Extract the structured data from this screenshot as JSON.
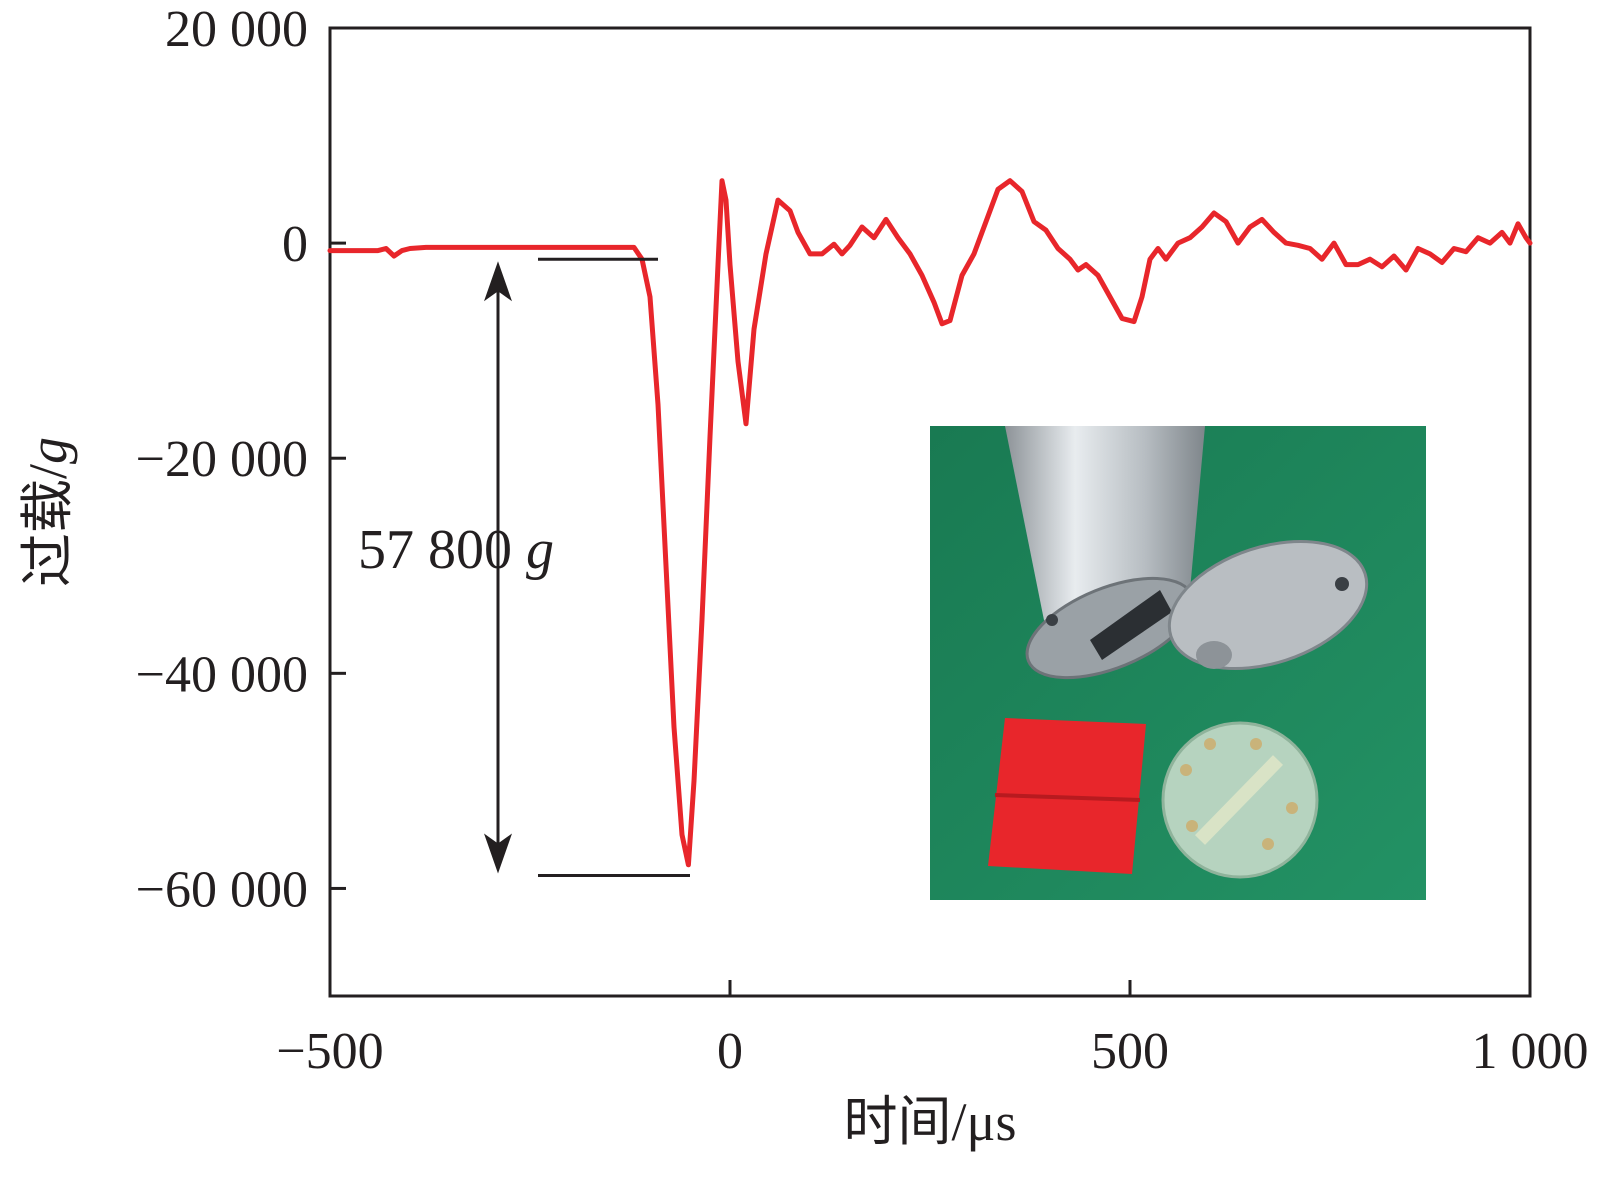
{
  "chart_data": {
    "type": "line",
    "xlabel": "时间/μs",
    "ylabel_text": "过载/",
    "ylabel_unit": "g",
    "xlim": [
      -500,
      1000
    ],
    "ylim": [
      -70000,
      20000
    ],
    "x_ticks": [
      {
        "value": -500,
        "label": "−500"
      },
      {
        "value": 0,
        "label": "0"
      },
      {
        "value": 500,
        "label": "500"
      },
      {
        "value": 1000,
        "label": "1 000"
      }
    ],
    "y_ticks": [
      {
        "value": 20000,
        "label": "20 000"
      },
      {
        "value": 0,
        "label": "0"
      },
      {
        "value": -20000,
        "label": "−20 000"
      },
      {
        "value": -40000,
        "label": "−40 000"
      },
      {
        "value": -60000,
        "label": "−60 000"
      }
    ],
    "series": [
      {
        "color": "#e8262b",
        "points": [
          [
            -500,
            -700
          ],
          [
            -440,
            -700
          ],
          [
            -430,
            -500
          ],
          [
            -420,
            -1200
          ],
          [
            -410,
            -700
          ],
          [
            -400,
            -500
          ],
          [
            -380,
            -400
          ],
          [
            -300,
            -400
          ],
          [
            -200,
            -400
          ],
          [
            -150,
            -400
          ],
          [
            -120,
            -400
          ],
          [
            -110,
            -1500
          ],
          [
            -100,
            -5000
          ],
          [
            -90,
            -15000
          ],
          [
            -80,
            -30000
          ],
          [
            -70,
            -45000
          ],
          [
            -60,
            -55000
          ],
          [
            -52,
            -57800
          ],
          [
            -45,
            -50000
          ],
          [
            -35,
            -35000
          ],
          [
            -25,
            -18000
          ],
          [
            -15,
            -2000
          ],
          [
            -10,
            5800
          ],
          [
            -5,
            4000
          ],
          [
            0,
            -2000
          ],
          [
            10,
            -11000
          ],
          [
            20,
            -16800
          ],
          [
            30,
            -8000
          ],
          [
            45,
            -1000
          ],
          [
            60,
            4000
          ],
          [
            75,
            3000
          ],
          [
            85,
            1000
          ],
          [
            100,
            -1000
          ],
          [
            115,
            -1000
          ],
          [
            130,
            -100
          ],
          [
            140,
            -1000
          ],
          [
            150,
            -200
          ],
          [
            165,
            1500
          ],
          [
            180,
            500
          ],
          [
            195,
            2200
          ],
          [
            210,
            500
          ],
          [
            225,
            -1000
          ],
          [
            240,
            -3000
          ],
          [
            255,
            -5500
          ],
          [
            265,
            -7500
          ],
          [
            275,
            -7200
          ],
          [
            290,
            -3000
          ],
          [
            305,
            -1000
          ],
          [
            320,
            2000
          ],
          [
            335,
            5000
          ],
          [
            350,
            5800
          ],
          [
            365,
            4800
          ],
          [
            380,
            2000
          ],
          [
            395,
            1200
          ],
          [
            410,
            -500
          ],
          [
            425,
            -1500
          ],
          [
            435,
            -2500
          ],
          [
            445,
            -2000
          ],
          [
            460,
            -3000
          ],
          [
            475,
            -5000
          ],
          [
            490,
            -7000
          ],
          [
            505,
            -7300
          ],
          [
            515,
            -5000
          ],
          [
            525,
            -1500
          ],
          [
            535,
            -500
          ],
          [
            545,
            -1500
          ],
          [
            560,
            0
          ],
          [
            575,
            500
          ],
          [
            590,
            1500
          ],
          [
            605,
            2800
          ],
          [
            620,
            2000
          ],
          [
            635,
            0
          ],
          [
            650,
            1500
          ],
          [
            665,
            2200
          ],
          [
            680,
            1000
          ],
          [
            695,
            0
          ],
          [
            710,
            -200
          ],
          [
            725,
            -500
          ],
          [
            740,
            -1500
          ],
          [
            755,
            0
          ],
          [
            770,
            -2000
          ],
          [
            785,
            -2000
          ],
          [
            800,
            -1500
          ],
          [
            815,
            -2200
          ],
          [
            830,
            -1200
          ],
          [
            845,
            -2500
          ],
          [
            860,
            -500
          ],
          [
            875,
            -1000
          ],
          [
            890,
            -1800
          ],
          [
            905,
            -500
          ],
          [
            920,
            -800
          ],
          [
            935,
            500
          ],
          [
            950,
            0
          ],
          [
            965,
            1000
          ],
          [
            975,
            0
          ],
          [
            985,
            1800
          ],
          [
            995,
            500
          ],
          [
            1000,
            0
          ]
        ]
      }
    ],
    "annotation": {
      "label_number": "57 800 ",
      "label_unit": "g",
      "top_value": -1500,
      "bottom_value": -58800,
      "arrow_x": -290,
      "top_line_x": [
        -240,
        -90
      ],
      "bottom_line_x": [
        -240,
        -50
      ]
    },
    "inset_photo": {
      "description": "photo of aluminium cylinder with end plate, red rubber pad and green circuit disc on green mat"
    },
    "grid": false
  }
}
